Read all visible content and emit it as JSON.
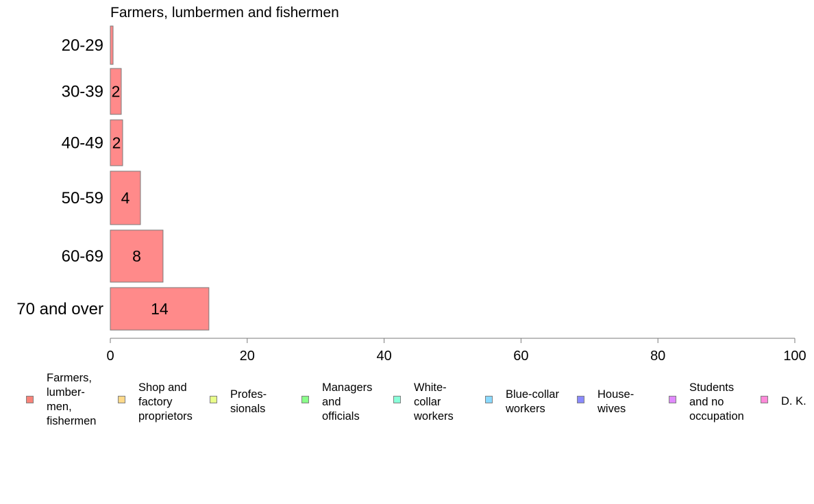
{
  "chart_data": {
    "type": "bar",
    "orientation": "horizontal",
    "title": "Farmers, lumbermen and fishermen",
    "categories": [
      "20-29",
      "30-39",
      "40-49",
      "50-59",
      "60-69",
      "70 and over"
    ],
    "values": [
      0.4,
      1.6,
      1.8,
      4.4,
      7.7,
      14.4
    ],
    "data_labels": [
      "",
      "2",
      "2",
      "4",
      "8",
      "14"
    ],
    "xlim": [
      0,
      100
    ],
    "xticks": [
      "0",
      "20",
      "40",
      "60",
      "80",
      "100"
    ],
    "xlabel": "",
    "ylabel": "",
    "grid": false,
    "bar_color": "#ff8a8a",
    "legend_position": "bottom",
    "legend": [
      {
        "label": "Farmers,\nlumber-\nmen,\nfishermen",
        "color": "#f88379"
      },
      {
        "label": "Shop and\nfactory\nproprietors",
        "color": "#ffd98a"
      },
      {
        "label": "Profes-\nsionals",
        "color": "#e8ff8a"
      },
      {
        "label": "Managers\nand\nofficials",
        "color": "#8aff8a"
      },
      {
        "label": "White-\ncollar\nworkers",
        "color": "#8affd9"
      },
      {
        "label": "Blue-collar\nworkers",
        "color": "#8ad9ff"
      },
      {
        "label": "House-\nwives",
        "color": "#8a8aff"
      },
      {
        "label": "Students\nand no\noccupation",
        "color": "#e08aff"
      },
      {
        "label": "D. K.",
        "color": "#ff8ad9"
      }
    ]
  }
}
